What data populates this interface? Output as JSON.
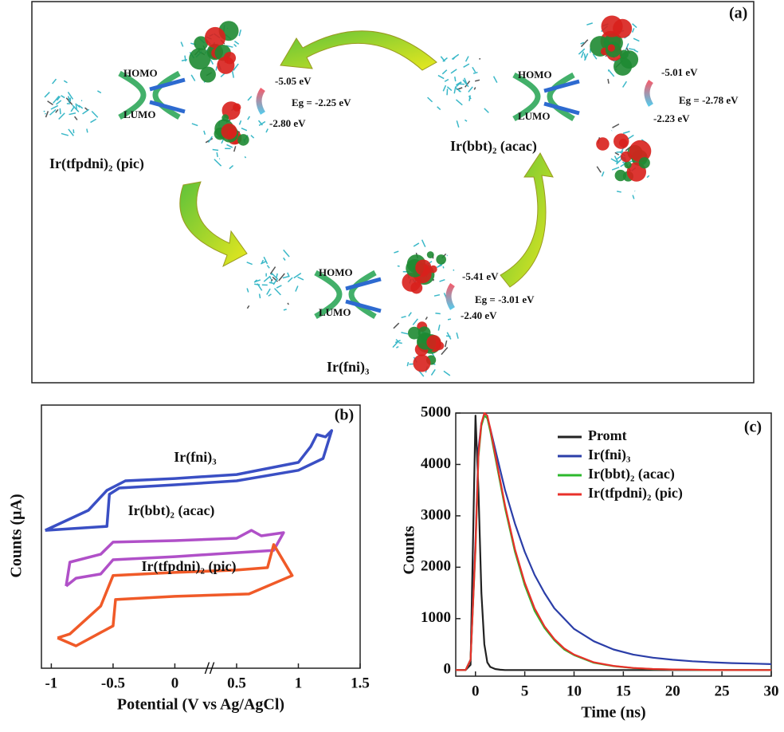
{
  "diagram": {
    "panel_label": "(a)",
    "complexes": [
      {
        "name": "Ir(tfpdni)₂ (pic)",
        "homo_label": "HOMO",
        "lumo_label": "LUMO",
        "homo": "-5.05 eV",
        "gap": "Eg = -2.25 eV",
        "lumo": "-2.80 eV"
      },
      {
        "name": "Ir(bbt)₂ (acac)",
        "homo_label": "HOMO",
        "lumo_label": "LUMO",
        "homo": "-5.01 eV",
        "gap": "Eg = -2.78 eV",
        "lumo": "-2.23 eV"
      },
      {
        "name": "Ir(fni)₃",
        "homo_label": "HOMO",
        "lumo_label": "LUMO",
        "homo": "-5.41 eV",
        "gap": "Eg = -3.01 eV",
        "lumo": "-2.40 eV"
      }
    ]
  },
  "chart_data": [
    {
      "type": "line",
      "panel_label": "(b)",
      "x_label": "Potential (V vs Ag/AgCl)",
      "y_label": "Counts (μA)",
      "xlim": [
        -1.08,
        1.5
      ],
      "xticks": [
        -1,
        -0.5,
        0,
        0.5,
        1,
        1.5
      ],
      "ylim": [
        0,
        10
      ],
      "series": [
        {
          "name": "Ir(fni)₃",
          "color": "#3a4fc4",
          "x": [
            -1.05,
            -0.7,
            -0.55,
            -0.4,
            0,
            0.5,
            1,
            1.1,
            1.15,
            1.22,
            1.27,
            1.2,
            1.0,
            0.5,
            0,
            -0.45,
            -0.53,
            -0.55,
            -1.05
          ],
          "values": [
            5.24,
            6.0,
            6.76,
            7.12,
            7.21,
            7.36,
            7.82,
            8.42,
            8.88,
            8.79,
            9.03,
            7.97,
            7.52,
            7.12,
            6.97,
            6.85,
            6.61,
            5.39,
            5.24
          ]
        },
        {
          "name": "Ir(bbt)₂ (acac)",
          "color": "#b050c8",
          "x": [
            -0.88,
            -0.85,
            -0.6,
            -0.5,
            0,
            0.5,
            0.62,
            0.7,
            0.88,
            0.8,
            0.5,
            0,
            -0.5,
            -0.6,
            -0.8,
            -0.88
          ],
          "values": [
            3.12,
            4.03,
            4.33,
            4.79,
            4.85,
            4.94,
            5.24,
            5.03,
            5.15,
            4.48,
            4.39,
            4.24,
            4.12,
            3.58,
            3.42,
            3.12
          ]
        },
        {
          "name": "Ir(tfpdni)₂ (pic)",
          "color": "#f05a28",
          "x": [
            -0.95,
            -0.85,
            -0.6,
            -0.5,
            0,
            0.5,
            0.75,
            0.8,
            0.95,
            0.6,
            0,
            -0.48,
            -0.5,
            -0.8,
            -0.95
          ],
          "values": [
            1.15,
            1.3,
            2.36,
            3.52,
            3.64,
            3.73,
            3.82,
            4.7,
            3.52,
            2.82,
            2.73,
            2.61,
            1.61,
            0.85,
            1.15
          ]
        }
      ]
    },
    {
      "type": "line",
      "panel_label": "(c)",
      "x_label": "Time (ns)",
      "y_label": "Counts",
      "xlim": [
        -2,
        30
      ],
      "xticks": [
        0,
        5,
        10,
        15,
        20,
        25,
        30
      ],
      "ylim": [
        -120,
        5000
      ],
      "yticks": [
        0,
        1000,
        2000,
        3000,
        4000,
        5000
      ],
      "x": [
        -2,
        -1,
        -0.5,
        0,
        0.3,
        0.6,
        0.9,
        1.2,
        1.5,
        2,
        2.5,
        3,
        4,
        5,
        6,
        7,
        8,
        9,
        10,
        12,
        14,
        16,
        18,
        20,
        22,
        24,
        26,
        28,
        30
      ],
      "series": [
        {
          "name": "Promt",
          "color": "#222222",
          "values": [
            0,
            0,
            100,
            4950,
            3500,
            1500,
            500,
            150,
            60,
            20,
            5,
            0,
            0,
            0,
            0,
            0,
            0,
            0,
            0,
            0,
            0,
            0,
            0,
            0,
            0,
            0,
            0,
            0,
            0
          ]
        },
        {
          "name": "Ir(fni)₃",
          "color": "#2b3ea8",
          "values": [
            0,
            0,
            200,
            2500,
            4300,
            4800,
            4950,
            4900,
            4700,
            4300,
            3900,
            3500,
            2850,
            2300,
            1850,
            1500,
            1200,
            1000,
            800,
            560,
            400,
            300,
            240,
            200,
            170,
            150,
            135,
            125,
            115
          ]
        },
        {
          "name": "Ir(bbt)₂ (acac)",
          "color": "#2db82d",
          "values": [
            0,
            0,
            200,
            2350,
            4150,
            4750,
            4950,
            4900,
            4650,
            4150,
            3650,
            3150,
            2300,
            1650,
            1150,
            820,
            580,
            400,
            290,
            140,
            75,
            38,
            18,
            9,
            4,
            0,
            0,
            0,
            0
          ]
        },
        {
          "name": "Ir(tfpdni)₂ (pic)",
          "color": "#e8302a",
          "values": [
            0,
            0,
            200,
            2400,
            4200,
            4800,
            5000,
            4950,
            4700,
            4200,
            3700,
            3200,
            2350,
            1700,
            1200,
            850,
            600,
            420,
            300,
            150,
            80,
            40,
            20,
            10,
            5,
            0,
            0,
            0,
            0
          ]
        }
      ]
    }
  ]
}
